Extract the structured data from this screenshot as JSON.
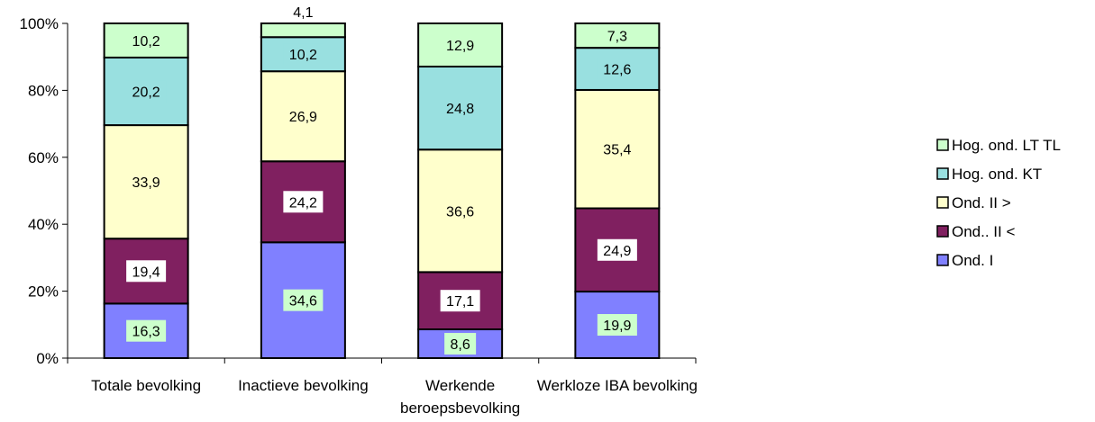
{
  "chart_data": {
    "type": "bar",
    "stacked": true,
    "percent_stacked": true,
    "categories": [
      [
        "Totale bevolking"
      ],
      [
        "Inactieve bevolking"
      ],
      [
        "Werkende",
        "beroepsbevolking"
      ],
      [
        "Werkloze IBA bevolking"
      ]
    ],
    "series": [
      {
        "name": "Ond.  I",
        "color": "#8080ff",
        "values": [
          16.3,
          34.6,
          8.6,
          19.9
        ]
      },
      {
        "name": "Ond.. II <",
        "color": "#802060",
        "values": [
          19.4,
          24.2,
          17.1,
          24.9
        ]
      },
      {
        "name": "Ond. II >",
        "color": "#ffffcc",
        "values": [
          33.9,
          26.9,
          36.6,
          35.4
        ]
      },
      {
        "name": "Hog. ond. KT",
        "color": "#99e0e0",
        "values": [
          20.2,
          10.2,
          24.8,
          12.6
        ]
      },
      {
        "name": "Hog. ond. LT TL",
        "color": "#ccffcc",
        "values": [
          10.2,
          4.1,
          12.9,
          7.3
        ]
      }
    ],
    "label_backgrounds": [
      "#ccffcc",
      "#ffffff",
      "#ffffcc",
      "#99e0e0",
      "#ccffcc"
    ],
    "y_ticks": [
      "0%",
      "20%",
      "40%",
      "60%",
      "80%",
      "100%"
    ],
    "ylim": [
      0,
      100
    ],
    "grid": false,
    "legend": {
      "position": "right",
      "order": "reverse"
    }
  }
}
